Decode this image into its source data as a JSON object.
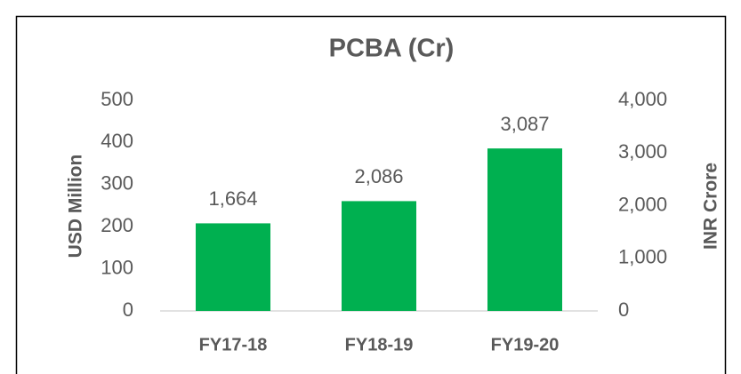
{
  "chart_data": {
    "type": "bar",
    "title": "PCBA (Cr)",
    "categories": [
      "FY17-18",
      "FY18-19",
      "FY19-20"
    ],
    "series": [
      {
        "color": "#00b050",
        "axis": "y2",
        "values": [
          1664,
          2086,
          3087
        ],
        "value_labels": [
          "1,664",
          "2,086",
          "3,087"
        ]
      }
    ],
    "ylabel": "USD Million",
    "y2label": "INR Crore",
    "ylim": [
      0,
      500
    ],
    "yticks": [
      0,
      100,
      200,
      300,
      400,
      500
    ],
    "y2lim": [
      0,
      4000
    ],
    "y2ticks": [
      0,
      {
        "value": 1000,
        "label": "1,000"
      },
      {
        "value": 2000,
        "label": "2,000"
      },
      {
        "value": 3000,
        "label": "3,000"
      },
      {
        "value": 4000,
        "label": "4,000"
      }
    ],
    "grid": false
  }
}
